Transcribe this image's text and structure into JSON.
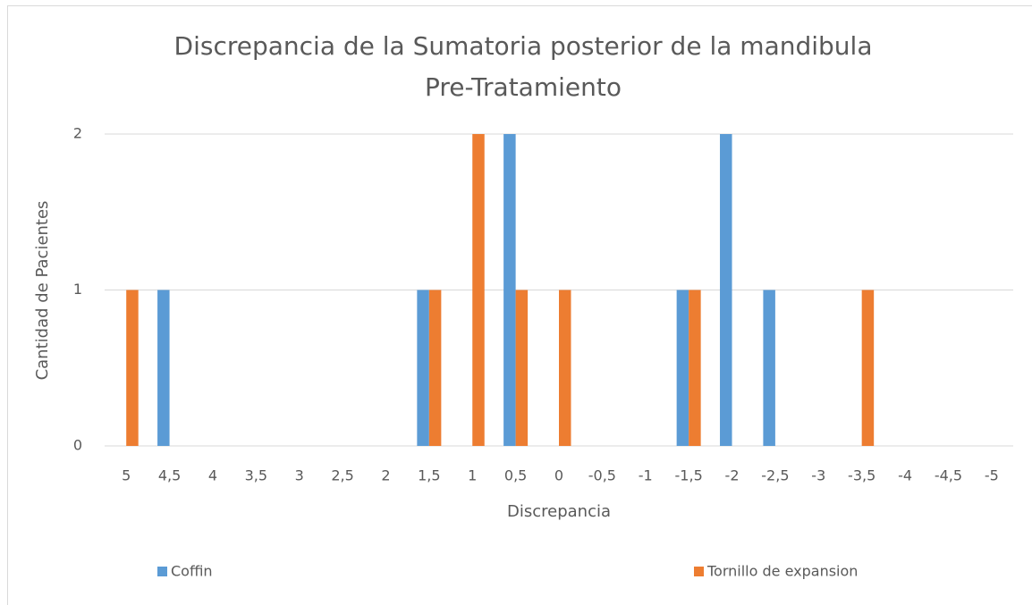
{
  "chart_data": {
    "type": "bar",
    "title": "Discrepancia de la Sumatoria posterior de la mandibula",
    "subtitle": "Pre-Tratamiento",
    "x_label": "Discrepancia",
    "y_label": "Cantidad de Pacientes",
    "categories": [
      "5",
      "4,5",
      "4",
      "3,5",
      "3",
      "2,5",
      "2",
      "1,5",
      "1",
      "0,5",
      "0",
      "-0,5",
      "-1",
      "-1,5",
      "-2",
      "-2,5",
      "-3",
      "-3,5",
      "-4",
      "-4,5",
      "-5"
    ],
    "series": [
      {
        "name": "Coffin",
        "color": "#5b9bd5",
        "values": [
          0,
          1,
          0,
          0,
          0,
          0,
          0,
          1,
          0,
          2,
          0,
          0,
          0,
          1,
          2,
          1,
          0,
          0,
          0,
          0,
          0
        ]
      },
      {
        "name": "Tornillo de expansion",
        "color": "#ed7d31",
        "values": [
          1,
          0,
          0,
          0,
          0,
          0,
          0,
          1,
          2,
          1,
          1,
          0,
          0,
          1,
          0,
          0,
          0,
          1,
          0,
          0,
          0
        ]
      }
    ],
    "ylim": [
      0,
      2
    ],
    "yticks": [
      0,
      1,
      2
    ],
    "grid": true,
    "legend": "bottom"
  }
}
